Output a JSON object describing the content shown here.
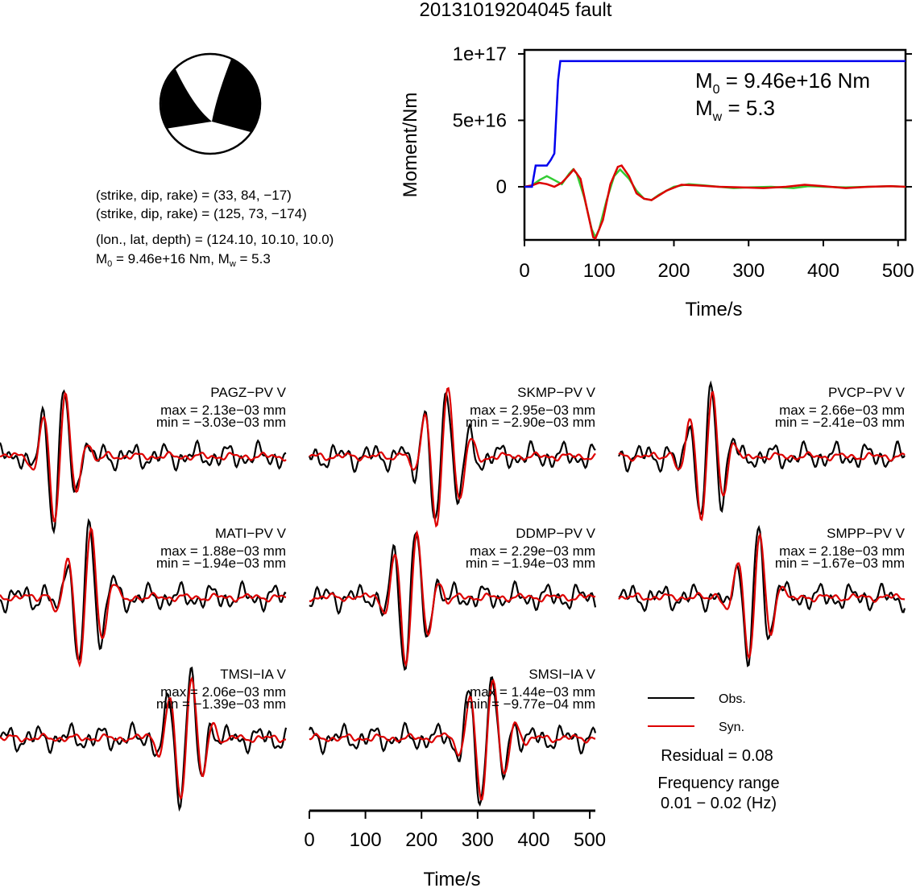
{
  "title": "20131019204045 fault",
  "mechanism": {
    "plane1": "(strike, dip, rake) = (33, 84, −17)",
    "plane2": "(strike, dip, rake) = (125, 73, −174)",
    "location": "(lon., lat, depth) = (124.10, 10.10, 10.0)",
    "moment_text": {
      "m0_label": "M",
      "m0_sub": "0",
      "m0_value": " = 9.46e+16 Nm, M",
      "mw_sub": "w",
      "mw_value": " = 5.3"
    }
  },
  "moment_panel": {
    "ylabel": "Moment/Nm",
    "xlabel": "Time/s",
    "yticks": [
      "0",
      "5e+16",
      "1e+17"
    ],
    "xticks": [
      "0",
      "100",
      "200",
      "300",
      "400",
      "500"
    ],
    "m0_prefix": "M",
    "m0_sub": "0",
    "m0_value": " = 9.46e+16 Nm",
    "mw_prefix": "M",
    "mw_sub": "w",
    "mw_value": " = 5.3"
  },
  "waveform_axis": {
    "xlabel": "Time/s",
    "xticks": [
      "0",
      "100",
      "200",
      "300",
      "400",
      "500"
    ]
  },
  "stations": [
    {
      "name": "PAGZ−PV V",
      "max": "max = 2.13e−03 mm",
      "min": "min = −3.03e−03 mm"
    },
    {
      "name": "SKMP−PV V",
      "max": "max = 2.95e−03 mm",
      "min": "min = −2.90e−03 mm"
    },
    {
      "name": "PVCP−PV V",
      "max": "max = 2.66e−03 mm",
      "min": "min = −2.41e−03 mm"
    },
    {
      "name": "MATI−PV V",
      "max": "max = 1.88e−03 mm",
      "min": "min = −1.94e−03 mm"
    },
    {
      "name": "DDMP−PV V",
      "max": "max = 2.29e−03 mm",
      "min": "min = −1.94e−03 mm"
    },
    {
      "name": "SMPP−PV V",
      "max": "max = 2.18e−03 mm",
      "min": "min = −1.67e−03 mm"
    },
    {
      "name": "TMSI−IA V",
      "max": "max = 2.06e−03 mm",
      "min": "min = −1.39e−03 mm"
    },
    {
      "name": "SMSI−IA V",
      "max": "max = 1.44e−03 mm",
      "min": "min = −9.77e−04 mm"
    }
  ],
  "legend": {
    "obs": "Obs.",
    "syn": "Syn."
  },
  "residual": "Residual = 0.08",
  "freq_label": "Frequency range",
  "freq_value": "0.01 − 0.02 (Hz)",
  "colors": {
    "obs": "#000000",
    "syn": "#dd0000",
    "moment_cum": "#0000ee",
    "moment_green": "#33cc33",
    "moment_red": "#dd0000"
  },
  "chart_data": [
    {
      "type": "line",
      "xlabel": "Time/s",
      "ylabel": "Moment/Nm",
      "xlim": [
        0,
        510
      ],
      "ylim": [
        -4e+16,
        1.03e+17
      ],
      "series": [
        {
          "x": [
            0,
            10,
            15,
            20,
            30,
            35,
            40,
            45,
            48,
            100,
            200,
            300,
            400,
            510
          ],
          "values": [
            0,
            0,
            1.6e+16,
            1.6e+16,
            1.6e+16,
            2e+16,
            2.5e+16,
            8e+16,
            9.46e+16,
            9.46e+16,
            9.46e+16,
            9.46e+16,
            9.46e+16,
            9.46e+16
          ]
        },
        {
          "x": [
            0,
            10,
            20,
            30,
            40,
            50,
            60,
            65,
            70,
            80,
            90,
            95,
            100,
            110,
            120,
            128,
            140,
            150,
            160,
            170,
            180,
            200,
            220,
            240,
            260,
            280,
            300,
            330,
            360,
            380,
            400,
            430,
            460,
            490,
            510
          ],
          "values": [
            0,
            1000000000000000.0,
            5000000000000000.0,
            8000000000000000.0,
            5000000000000000.0,
            2000000000000000.0,
            1e+16,
            1.3e+16,
            1e+16,
            -8000000000000000.0,
            -3.2e+16,
            -3.8e+16,
            -3.2e+16,
            -1e+16,
            8000000000000000.0,
            1.3e+16,
            6000000000000000.0,
            -3000000000000000.0,
            -9000000000000000.0,
            -1e+16,
            -6000000000000000.0,
            0.0,
            2000000000000000.0,
            1000000000000000.0,
            0.0,
            -1000000000000000.0,
            -500000000000000.0,
            0.0,
            -1000000000000000.0,
            500000000000000.0,
            0.0,
            -500000000000000.0,
            0.0,
            500000000000000.0,
            0.0
          ]
        },
        {
          "x": [
            0,
            10,
            20,
            30,
            40,
            50,
            60,
            66,
            75,
            85,
            92,
            95,
            105,
            115,
            125,
            130,
            140,
            150,
            160,
            170,
            190,
            210,
            230,
            260,
            290,
            320,
            350,
            375,
            400,
            430,
            460,
            490,
            510
          ],
          "values": [
            0,
            1000000000000000.0,
            3000000000000000.0,
            2000000000000000.0,
            0.0,
            3000000000000000.0,
            9000000000000000.0,
            1.3e+16,
            6000000000000000.0,
            -2e+16,
            -3.8e+16,
            -3.9e+16,
            -2.5e+16,
            2000000000000000.0,
            1.5e+16,
            1.6e+16,
            8000000000000000.0,
            -5000000000000000.0,
            -9000000000000000.0,
            -1e+16,
            -3000000000000000.0,
            1500000000000000.0,
            1000000000000000.0,
            0.0,
            -500000000000000.0,
            -1000000000000000.0,
            0.0,
            1500000000000000.0,
            500000000000000.0,
            -1000000000000000.0,
            0.0,
            500000000000000.0,
            0.0
          ]
        }
      ]
    },
    {
      "type": "line",
      "xlabel": "Time/s",
      "xlim": [
        0,
        510
      ],
      "series": [
        {
          "x": [
            0,
            40,
            80,
            120,
            150,
            165,
            180,
            195,
            210,
            225,
            240,
            260,
            280,
            300,
            320,
            340,
            360,
            380,
            400,
            440,
            480,
            510
          ],
          "values": [
            0,
            0.05,
            0.0,
            0.05,
            -0.03,
            -0.3,
            -0.85,
            0.6,
            0.25,
            -0.5,
            -0.45,
            0.05,
            0.1,
            -0.08,
            -0.04,
            0.03,
            -0.02,
            0.01,
            0.0,
            0.0,
            -0.01,
            0.0
          ]
        }
      ]
    }
  ]
}
